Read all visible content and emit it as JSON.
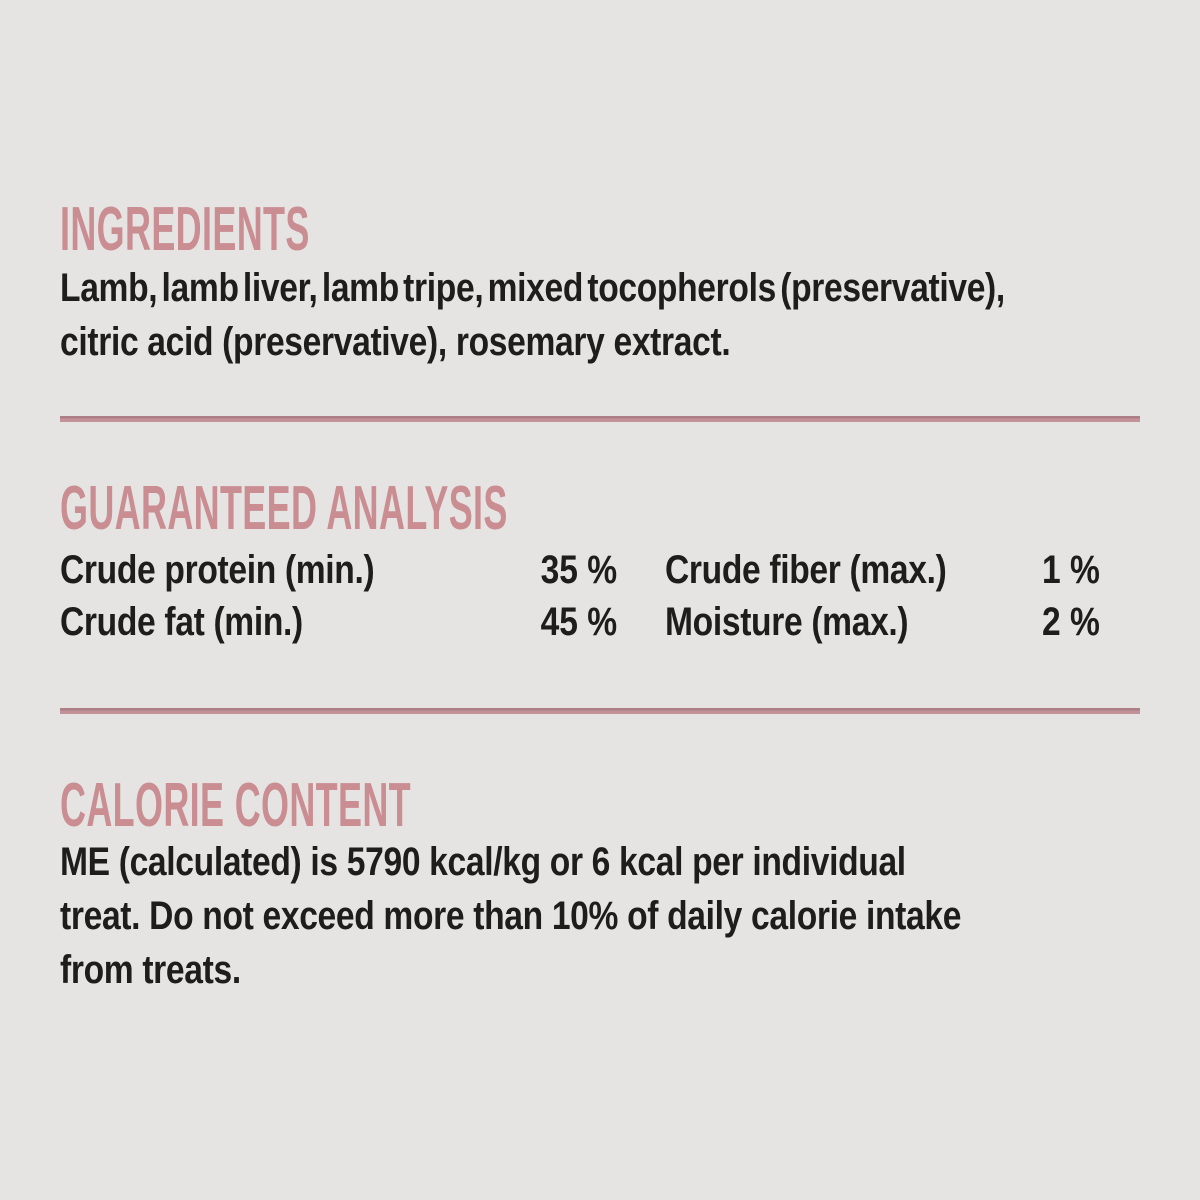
{
  "label": {
    "background_color": "#e5e4e3",
    "accent_color": "#c98d92",
    "text_color": "#1e1d1b"
  },
  "sections": {
    "ingredients": {
      "heading": "INGREDIENTS",
      "lines": [
        "Lamb, lamb liver, lamb tripe, mixed tocopherols (preservative),",
        "citric acid (preservative), rosemary extract."
      ]
    },
    "guaranteed_analysis": {
      "heading": "GUARANTEED ANALYSIS",
      "rows": [
        {
          "label": "Crude protein (min.)",
          "value": "35 %"
        },
        {
          "label": "Crude fiber (max.)",
          "value": "1 %"
        },
        {
          "label": "Crude fat (min.)",
          "value": "45 %"
        },
        {
          "label": "Moisture (max.)",
          "value": "2 %"
        }
      ]
    },
    "calorie_content": {
      "heading": "CALORIE CONTENT",
      "lines": [
        "ME (calculated) is 5790 kcal/kg or 6 kcal per individual",
        "treat. Do not exceed more than 10% of daily calorie intake",
        "from treats."
      ]
    }
  }
}
